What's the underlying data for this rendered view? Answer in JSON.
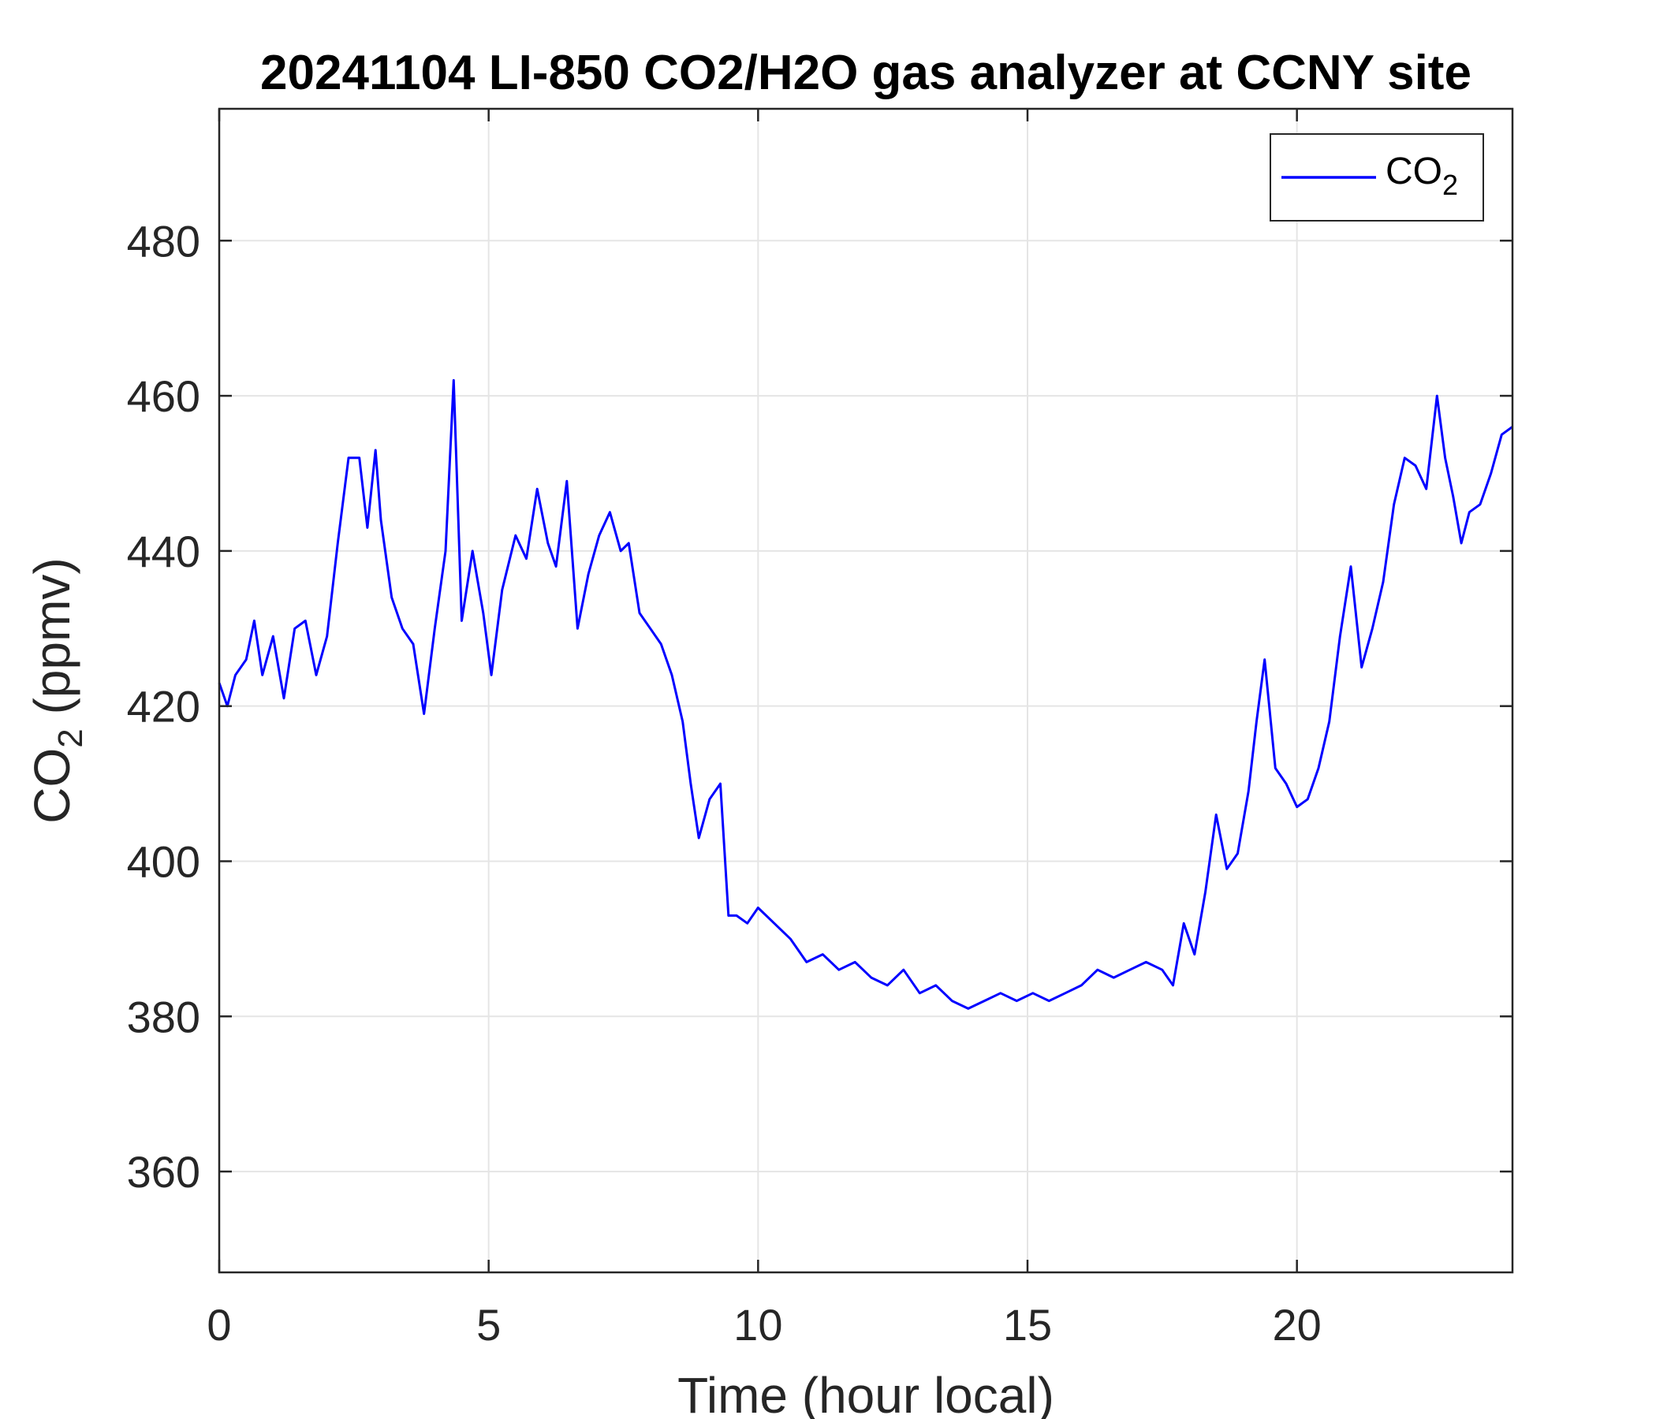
{
  "chart_data": {
    "type": "line",
    "title": "20241104 LI-850 CO2/H2O gas analyzer at CCNY site",
    "xlabel": "Time (hour local)",
    "ylabel_base": "CO",
    "ylabel_sub": "2",
    "ylabel_rest": " (ppmv)",
    "xlim": [
      0,
      24
    ],
    "ylim": [
      347,
      497
    ],
    "xticks": [
      0,
      5,
      10,
      15,
      20
    ],
    "yticks": [
      360,
      380,
      400,
      420,
      440,
      460,
      480
    ],
    "grid": true,
    "legend": {
      "position": "top-right",
      "label_base": "CO",
      "label_sub": "2"
    },
    "colors": {
      "line": "#0000ff",
      "axes": "#262626",
      "grid": "#e5e5e5"
    },
    "series": [
      {
        "x": [
          0,
          0.15,
          0.3,
          0.5,
          0.65,
          0.8,
          1.0,
          1.2,
          1.4,
          1.6,
          1.8,
          2.0,
          2.2,
          2.4,
          2.6,
          2.75,
          2.9,
          3.0,
          3.2,
          3.4,
          3.6,
          3.8,
          4.0,
          4.2,
          4.35,
          4.5,
          4.7,
          4.9,
          5.05,
          5.25,
          5.5,
          5.7,
          5.9,
          6.1,
          6.25,
          6.45,
          6.65,
          6.85,
          7.05,
          7.25,
          7.45,
          7.6,
          7.8,
          8.0,
          8.2,
          8.4,
          8.6,
          8.75,
          8.9,
          9.1,
          9.3,
          9.45,
          9.6,
          9.8,
          10.0,
          10.3,
          10.6,
          10.9,
          11.2,
          11.5,
          11.8,
          12.1,
          12.4,
          12.7,
          13.0,
          13.3,
          13.6,
          13.9,
          14.2,
          14.5,
          14.8,
          15.1,
          15.4,
          15.7,
          16.0,
          16.3,
          16.6,
          16.9,
          17.2,
          17.5,
          17.7,
          17.9,
          18.1,
          18.3,
          18.5,
          18.7,
          18.9,
          19.1,
          19.25,
          19.4,
          19.6,
          19.8,
          20.0,
          20.2,
          20.4,
          20.6,
          20.8,
          21.0,
          21.2,
          21.4,
          21.6,
          21.8,
          22.0,
          22.2,
          22.4,
          22.6,
          22.75,
          22.9,
          23.05,
          23.2,
          23.4,
          23.6,
          23.8,
          24.0
        ],
        "y": [
          423,
          420,
          424,
          426,
          431,
          424,
          429,
          421,
          430,
          431,
          424,
          429,
          441,
          452,
          452,
          443,
          453,
          444,
          434,
          430,
          428,
          419,
          430,
          440,
          462,
          431,
          440,
          432,
          424,
          435,
          442,
          439,
          448,
          441,
          438,
          449,
          430,
          437,
          442,
          445,
          440,
          441,
          432,
          430,
          428,
          424,
          418,
          410,
          403,
          408,
          410,
          393,
          393,
          392,
          394,
          392,
          390,
          387,
          388,
          386,
          387,
          385,
          384,
          386,
          383,
          384,
          382,
          381,
          382,
          383,
          382,
          383,
          382,
          383,
          384,
          386,
          385,
          386,
          387,
          386,
          384,
          392,
          388,
          396,
          406,
          399,
          401,
          409,
          418,
          426,
          412,
          410,
          407,
          408,
          412,
          418,
          429,
          438,
          425,
          430,
          436,
          446,
          452,
          451,
          448,
          460,
          452,
          447,
          441,
          445,
          446,
          450,
          455,
          456
        ]
      }
    ]
  }
}
